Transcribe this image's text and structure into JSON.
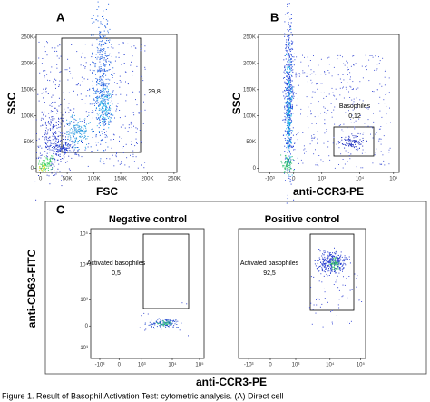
{
  "panels": [
    {
      "label": "A",
      "y_axis_label": "SSC",
      "x_axis_label": "FSC",
      "yticks": [
        "0",
        "50K",
        "100K",
        "150K",
        "200K",
        "250K"
      ],
      "xticks": [
        "0",
        "50K",
        "100K",
        "150K",
        "200K",
        "250K"
      ],
      "gate_value": "29,8"
    },
    {
      "label": "B",
      "y_axis_label": "SSC",
      "x_axis_label": "anti-CCR3-PE",
      "yticks": [
        "0",
        "50K",
        "100K",
        "150K",
        "200K",
        "250K"
      ],
      "xticks": [
        "-10³",
        "0",
        "10³",
        "10⁴",
        "10⁵"
      ],
      "gate_name": "Basophiles",
      "gate_value": "0,12"
    }
  ],
  "panel_c": {
    "label": "C",
    "y_axis_label": "anti-CD63-FITC",
    "x_axis_label": "anti-CCR3-PE",
    "yticks": [
      "-10³",
      "0",
      "10³",
      "10⁴",
      "10⁵"
    ],
    "plots": [
      {
        "title": "Negative control",
        "xticks": [
          "-10³",
          "0",
          "10³",
          "10⁴",
          "10⁵"
        ],
        "gate_name": "Activated basophiles",
        "gate_value": "0,5"
      },
      {
        "title": "Positive control",
        "xticks": [
          "-10³",
          "0",
          "10³",
          "10⁴",
          "10⁵"
        ],
        "gate_name": "Activated basophiles",
        "gate_value": "92,5"
      }
    ]
  },
  "caption": "Figure 1. Result of Basophil Activation Test: cytometric analysis. (A) Direct cell"
}
